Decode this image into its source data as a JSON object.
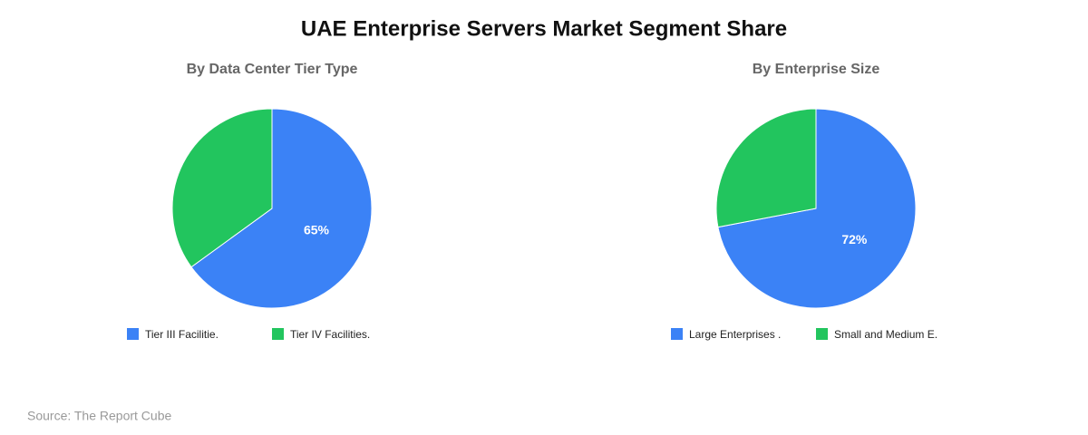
{
  "title": "UAE Enterprise Servers Market Segment Share",
  "source": "Source: The Report Cube",
  "chart_data": [
    {
      "type": "pie",
      "title": "By Data Center Tier Type",
      "categories": [
        "Tier III Facilitie.",
        "Tier IV Facilities."
      ],
      "values": [
        65,
        35
      ],
      "value_labels": [
        "65%",
        null
      ],
      "colors": [
        "#3b82f6",
        "#22c55e"
      ]
    },
    {
      "type": "pie",
      "title": "By Enterprise Size",
      "categories": [
        "Large Enterprises .",
        "Small and Medium E."
      ],
      "values": [
        72,
        28
      ],
      "value_labels": [
        "72%",
        null
      ],
      "colors": [
        "#3b82f6",
        "#22c55e"
      ]
    }
  ]
}
